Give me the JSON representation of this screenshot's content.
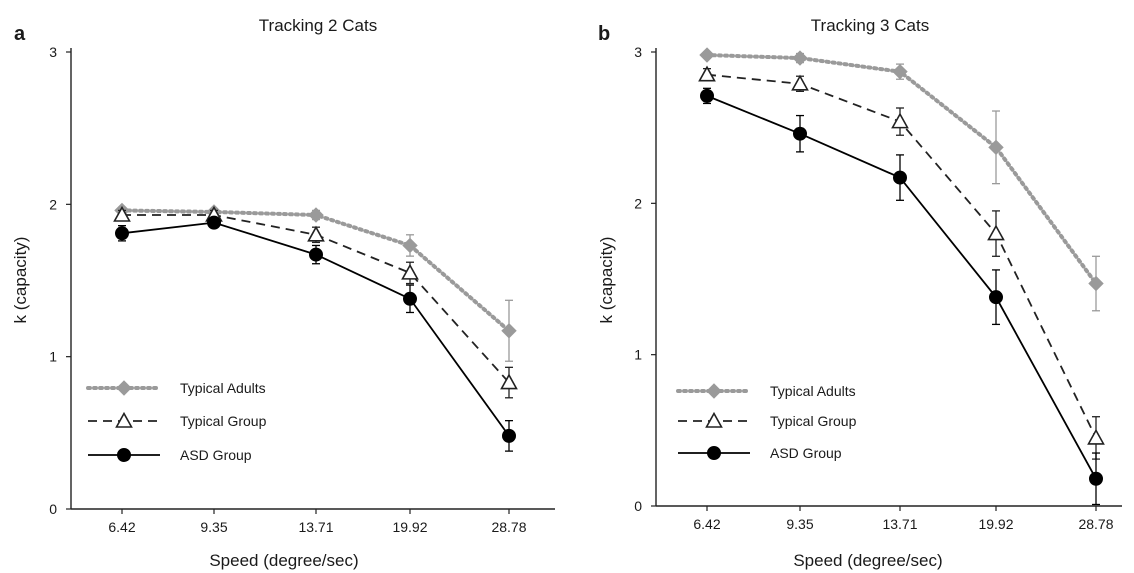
{
  "chart_data": [
    {
      "type": "line",
      "panel_label": "a",
      "title": "Tracking 2 Cats",
      "xlabel": "Speed (degree/sec)",
      "ylabel": "k (capacity)",
      "categories": [
        "6.42",
        "9.35",
        "13.71",
        "19.92",
        "28.78"
      ],
      "ylim": [
        0,
        3
      ],
      "yticks": [
        "0",
        "1",
        "2",
        "3"
      ],
      "grid": false,
      "legend_position": "bottom-left",
      "series": [
        {
          "name": "Typical Adults",
          "marker": "diamond",
          "style": "dotted",
          "color": "#9a9a9a",
          "values": [
            1.96,
            1.95,
            1.93,
            1.73,
            1.17
          ],
          "errors": [
            0.02,
            0.02,
            0.03,
            0.07,
            0.2
          ]
        },
        {
          "name": "Typical Group",
          "marker": "triangle-open",
          "style": "dashed",
          "color": "#222222",
          "values": [
            1.93,
            1.93,
            1.8,
            1.55,
            0.83
          ],
          "errors": [
            0.03,
            0.03,
            0.05,
            0.07,
            0.1
          ]
        },
        {
          "name": "ASD Group",
          "marker": "circle",
          "style": "solid",
          "color": "#000000",
          "values": [
            1.81,
            1.88,
            1.67,
            1.38,
            0.48
          ],
          "errors": [
            0.05,
            0.03,
            0.06,
            0.09,
            0.1
          ]
        }
      ]
    },
    {
      "type": "line",
      "panel_label": "b",
      "title": "Tracking 3 Cats",
      "xlabel": "Speed (degree/sec)",
      "ylabel": "k (capacity)",
      "categories": [
        "6.42",
        "9.35",
        "13.71",
        "19.92",
        "28.78"
      ],
      "ylim": [
        0,
        3
      ],
      "yticks": [
        "0",
        "1",
        "2",
        "3"
      ],
      "grid": false,
      "legend_position": "bottom-left",
      "series": [
        {
          "name": "Typical Adults",
          "marker": "diamond",
          "style": "dotted",
          "color": "#9a9a9a",
          "values": [
            2.98,
            2.96,
            2.87,
            2.37,
            1.47
          ],
          "errors": [
            0.02,
            0.03,
            0.05,
            0.24,
            0.18
          ]
        },
        {
          "name": "Typical Group",
          "marker": "triangle-open",
          "style": "dashed",
          "color": "#222222",
          "values": [
            2.85,
            2.79,
            2.54,
            1.8,
            0.45
          ],
          "errors": [
            0.04,
            0.05,
            0.09,
            0.15,
            0.14
          ]
        },
        {
          "name": "ASD Group",
          "marker": "circle",
          "style": "solid",
          "color": "#000000",
          "values": [
            2.71,
            2.46,
            2.17,
            1.38,
            0.18
          ],
          "errors": [
            0.05,
            0.12,
            0.15,
            0.18,
            0.17
          ]
        }
      ]
    }
  ]
}
